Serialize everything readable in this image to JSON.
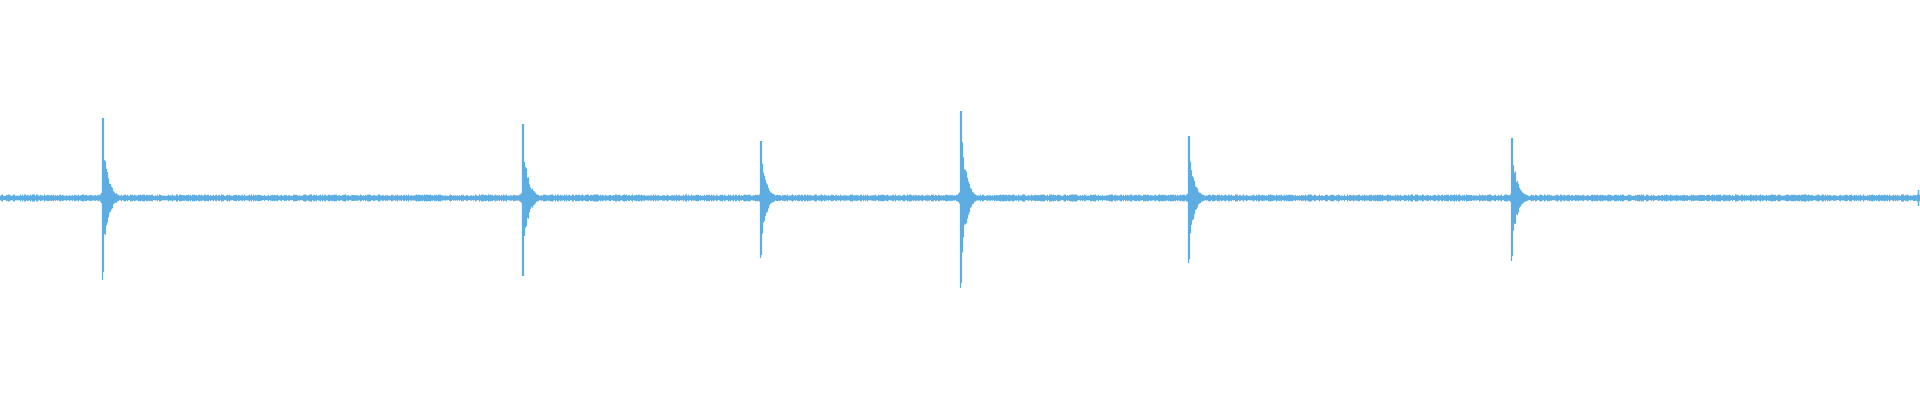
{
  "chart_data": {
    "type": "area",
    "title": "",
    "xlabel": "",
    "ylabel": "",
    "xlim": [
      0,
      1
    ],
    "ylim": [
      -1,
      1
    ],
    "grid": false,
    "legend": "none",
    "color": "#5dade2",
    "background": "#ffffff",
    "noise_floor": 0.01,
    "transients": [
      {
        "onset": 0.053,
        "peak_pos": 0.4,
        "peak_neg": 0.41
      },
      {
        "onset": 0.272,
        "peak_pos": 0.37,
        "peak_neg": 0.39
      },
      {
        "onset": 0.396,
        "peak_pos": 0.285,
        "peak_neg": 0.3
      },
      {
        "onset": 0.5,
        "peak_pos": 0.435,
        "peak_neg": 0.45
      },
      {
        "onset": 0.619,
        "peak_pos": 0.31,
        "peak_neg": 0.325
      },
      {
        "onset": 0.787,
        "peak_pos": 0.3,
        "peak_neg": 0.315
      }
    ]
  }
}
